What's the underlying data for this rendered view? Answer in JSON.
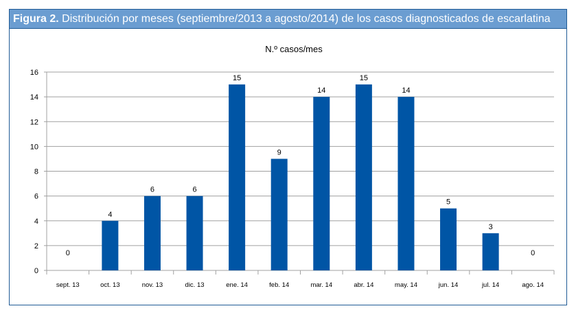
{
  "figure": {
    "label": "Figura 2.",
    "caption": "Distribución por meses (septiembre/2013 a agosto/2014) de los casos diagnosticados de escarlatina"
  },
  "chart_data": {
    "type": "bar",
    "title": "N.º casos/mes",
    "xlabel": "",
    "ylabel": "",
    "categories": [
      "sept. 13",
      "oct. 13",
      "nov. 13",
      "dic. 13",
      "ene. 14",
      "feb. 14",
      "mar. 14",
      "abr. 14",
      "may. 14",
      "jun. 14",
      "jul. 14",
      "ago. 14"
    ],
    "values": [
      0,
      4,
      6,
      6,
      15,
      9,
      14,
      15,
      14,
      5,
      3,
      0
    ],
    "ylim": [
      0,
      16
    ],
    "yticks": [
      0,
      2,
      4,
      6,
      8,
      10,
      12,
      14,
      16
    ],
    "grid": true,
    "legend": "none",
    "data_labels": true,
    "colors": {
      "bar": "#0055a5",
      "grid": "#a0a0a0",
      "header": "#6b9dd1",
      "border": "#1f5a95"
    }
  }
}
